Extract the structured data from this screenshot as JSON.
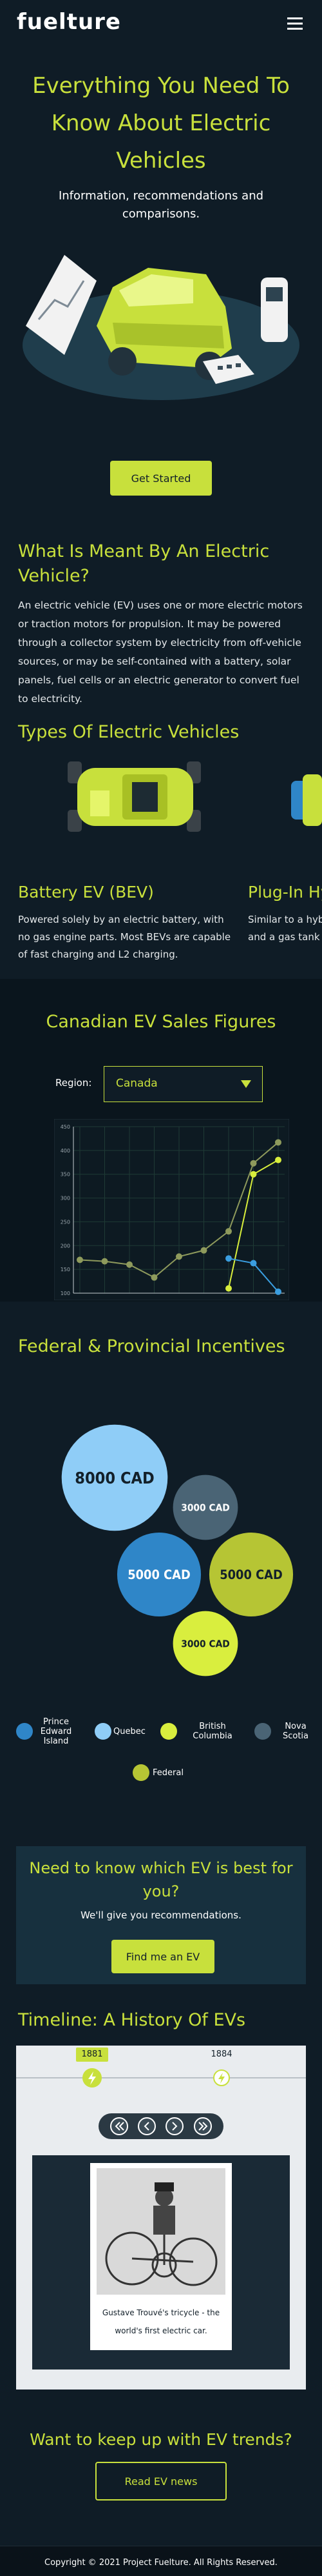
{
  "header": {
    "logo": "fuelture"
  },
  "hero": {
    "title": "Everything You Need To Know About Electric Vehicles",
    "subtitle": "Information, recommendations and comparisons.",
    "button": "Get Started"
  },
  "about": {
    "title": "What Is Meant By An Electric Vehicle?",
    "text": "An electric vehicle (EV) uses one or more electric motors or traction motors for propulsion. It may be powered through a collector system by electricity from off-vehicle sources, or may be self-contained with a battery, solar panels, fuel cells or an electric generator to convert fuel to electricity."
  },
  "types": {
    "title": "Types Of Electric Vehicles",
    "cards": [
      {
        "name": "Battery EV (BEV)",
        "text": "Powered solely by an electric battery, with no gas engine parts. Most BEVs are capable of fast charging and L2 charging."
      },
      {
        "name": "Plug-In Hybrid EV (PHEV)",
        "text": "Similar to a hybrid, with both a battery and a gas tank and an engine."
      }
    ]
  },
  "sales_chart": {
    "type": "line",
    "title": "Canadian EV Sales Figures",
    "region_label": "Region:",
    "region": "Canada",
    "categories": [
      null,
      null,
      null,
      null,
      null,
      null,
      null,
      null,
      null
    ],
    "series": [
      {
        "color": "#8e9a5c",
        "values": [
          170,
          167,
          160,
          133,
          177,
          190,
          230,
          373,
          417
        ]
      },
      {
        "color": "#d8ee3c",
        "values": [
          null,
          null,
          null,
          null,
          null,
          null,
          110,
          350,
          380
        ]
      },
      {
        "color": "#3a9ee0",
        "values": [
          null,
          null,
          null,
          null,
          null,
          null,
          173,
          163,
          103
        ]
      }
    ],
    "ylim": [
      100,
      450
    ],
    "yticks": [
      100,
      150,
      200,
      250,
      300,
      350,
      400,
      450
    ],
    "grid": true
  },
  "incentives": {
    "title": "Federal & Provincial Incentives",
    "items": [
      {
        "name": "Prince Edward Island",
        "color": "#2f86c8",
        "value": 5000,
        "value_label": "5000 CAD"
      },
      {
        "name": "Quebec",
        "color": "#8fcdf7",
        "value": 8000,
        "value_label": "8000 CAD"
      },
      {
        "name": "British Columbia",
        "color": "#d9ee3e",
        "value": 3000,
        "value_label": "3000 CAD"
      },
      {
        "name": "Nova Scotia",
        "color": "#4a6475",
        "value": 3000,
        "value_label": "3000 CAD"
      },
      {
        "name": "Federal",
        "color": "#b6c534",
        "value": 5000,
        "value_label": "5000 CAD"
      }
    ]
  },
  "cta": {
    "title": "Need to know which EV is best for you?",
    "subtitle": "We'll give you recommendations.",
    "button": "Find me an EV"
  },
  "timeline": {
    "title": "Timeline: A History Of EVs",
    "events": [
      {
        "year": "1881",
        "caption": "Gustave Trouvé's tricycle - the world's first electric car."
      },
      {
        "year": "1884"
      }
    ]
  },
  "news": {
    "title": "Want to keep up with EV trends?",
    "button": "Read EV news"
  },
  "footer": {
    "copyright": "Copyright © 2021 Project Fuelture. All Rights Reserved."
  }
}
